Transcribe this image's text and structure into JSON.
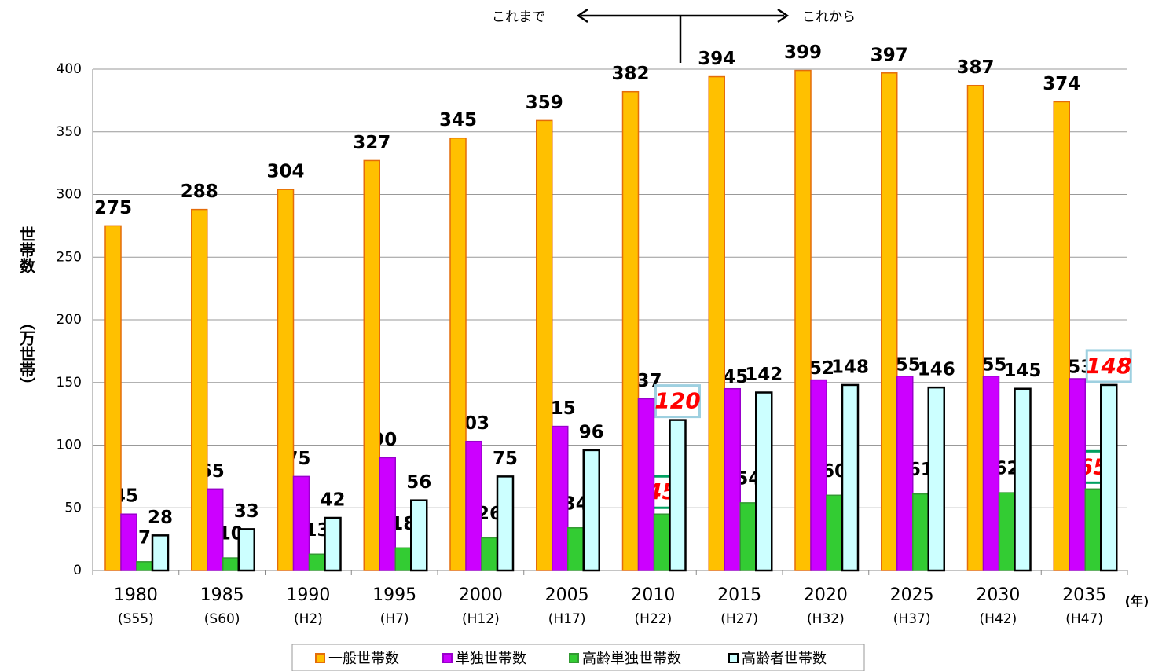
{
  "chart_data": {
    "type": "bar",
    "y_axis_label": "世帯数",
    "y_axis_unit": "（万世帯）",
    "x_axis_unit": "(年)",
    "annotations": {
      "past": "これまで",
      "future": "これから"
    },
    "categories": [
      "1980",
      "1985",
      "1990",
      "1995",
      "2000",
      "2005",
      "2010",
      "2015",
      "2020",
      "2025",
      "2030",
      "2035"
    ],
    "sub_categories": [
      "(S55)",
      "(S60)",
      "(H2)",
      "(H7)",
      "(H12)",
      "(H17)",
      "(H22)",
      "(H27)",
      "(H32)",
      "(H37)",
      "(H42)",
      "(H47)"
    ],
    "series": [
      {
        "name": "一般世帯数",
        "color": "#FFC000",
        "values": [
          275,
          288,
          304,
          327,
          345,
          359,
          382,
          394,
          399,
          397,
          387,
          374
        ]
      },
      {
        "name": "単独世帯数",
        "color": "#CC00FF",
        "values": [
          45,
          65,
          75,
          90,
          103,
          115,
          137,
          145,
          152,
          155,
          155,
          153
        ]
      },
      {
        "name": "高齢単独世帯数",
        "color": "#33CC33",
        "values": [
          7,
          10,
          13,
          18,
          26,
          34,
          45,
          54,
          60,
          61,
          62,
          65
        ]
      },
      {
        "name": "高齢者世帯数",
        "color": "#CCFFFF",
        "values": [
          28,
          33,
          42,
          56,
          75,
          96,
          120,
          142,
          148,
          146,
          145,
          148
        ]
      }
    ],
    "ylim": [
      0,
      400
    ],
    "yticks": [
      0,
      50,
      100,
      150,
      200,
      250,
      300,
      350,
      400
    ],
    "grid": true
  }
}
